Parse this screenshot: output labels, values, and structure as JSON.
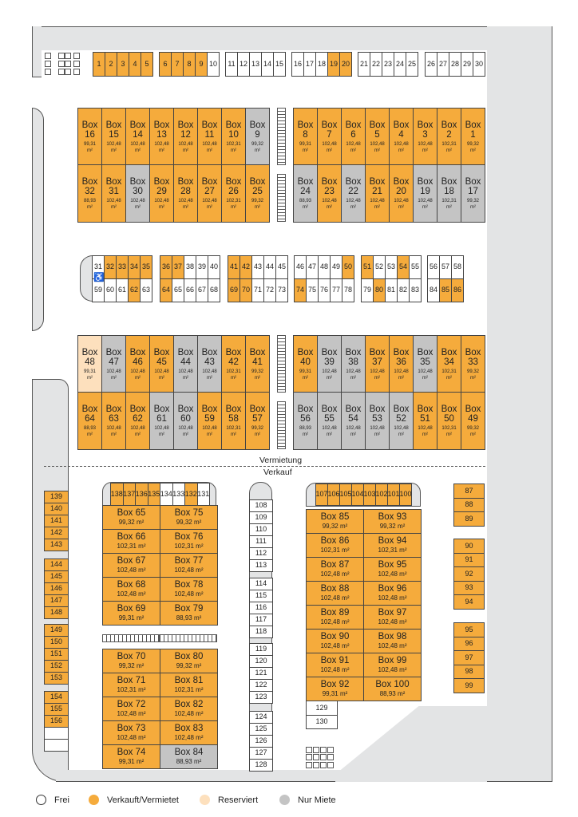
{
  "colors": {
    "sold": "#f5ab3c",
    "free": "#ffffff",
    "reserved": "#fde0bd",
    "rent": "#c4c4c4"
  },
  "labels": {
    "rental": "Vermietung",
    "sale": "Verkauf",
    "unit": "m²"
  },
  "legend": [
    {
      "label": "Frei",
      "status": "F"
    },
    {
      "label": "Verkauft/Vermietet",
      "status": "S"
    },
    {
      "label": "Reserviert",
      "status": "R"
    },
    {
      "label": "Nur Miete",
      "status": "M"
    }
  ],
  "groups": {
    "top_parking": [
      [
        "1",
        "S"
      ],
      [
        "2",
        "S"
      ],
      [
        "3",
        "S"
      ],
      [
        "4",
        "S"
      ],
      [
        "5",
        "S"
      ],
      [
        "6",
        "S"
      ],
      [
        "7",
        "S"
      ],
      [
        "8",
        "S"
      ],
      [
        "9",
        "S"
      ],
      [
        "10",
        "F"
      ],
      [
        "11",
        "F"
      ],
      [
        "12",
        "F"
      ],
      [
        "13",
        "F"
      ],
      [
        "14",
        "F"
      ],
      [
        "15",
        "F"
      ],
      [
        "16",
        "F"
      ],
      [
        "17",
        "F"
      ],
      [
        "18",
        "F"
      ],
      [
        "19",
        "S"
      ],
      [
        "20",
        "S"
      ],
      [
        "21",
        "F"
      ],
      [
        "22",
        "F"
      ],
      [
        "23",
        "F"
      ],
      [
        "24",
        "F"
      ],
      [
        "25",
        "F"
      ],
      [
        "26",
        "F"
      ],
      [
        "27",
        "F"
      ],
      [
        "28",
        "F"
      ],
      [
        "29",
        "F"
      ],
      [
        "30",
        "F"
      ]
    ],
    "upper_left_1": [
      [
        "16",
        "99,31",
        "S"
      ],
      [
        "15",
        "102,48",
        "S"
      ],
      [
        "14",
        "102,48",
        "S"
      ],
      [
        "13",
        "102,48",
        "S"
      ],
      [
        "12",
        "102,48",
        "S"
      ],
      [
        "11",
        "102,48",
        "S"
      ],
      [
        "10",
        "102,31",
        "S"
      ],
      [
        "9",
        "99,32",
        "M"
      ]
    ],
    "upper_right_1": [
      [
        "8",
        "99,31",
        "S"
      ],
      [
        "7",
        "102,48",
        "S"
      ],
      [
        "6",
        "102,48",
        "S"
      ],
      [
        "5",
        "102,48",
        "S"
      ],
      [
        "4",
        "102,48",
        "S"
      ],
      [
        "3",
        "102,48",
        "S"
      ],
      [
        "2",
        "102,31",
        "S"
      ],
      [
        "1",
        "99,32",
        "S"
      ]
    ],
    "upper_left_2": [
      [
        "32",
        "88,93",
        "S"
      ],
      [
        "31",
        "102,48",
        "S"
      ],
      [
        "30",
        "102,48",
        "M"
      ],
      [
        "29",
        "102,48",
        "S"
      ],
      [
        "28",
        "102,48",
        "S"
      ],
      [
        "27",
        "102,48",
        "S"
      ],
      [
        "26",
        "102,31",
        "S"
      ],
      [
        "25",
        "99,32",
        "S"
      ]
    ],
    "upper_right_2": [
      [
        "24",
        "88,93",
        "M"
      ],
      [
        "23",
        "102,48",
        "S"
      ],
      [
        "22",
        "102,48",
        "M"
      ],
      [
        "21",
        "102,48",
        "S"
      ],
      [
        "20",
        "102,48",
        "S"
      ],
      [
        "19",
        "102,48",
        "M"
      ],
      [
        "18",
        "102,31",
        "M"
      ],
      [
        "17",
        "99,32",
        "M"
      ]
    ],
    "mid_top": [
      [
        "31",
        "F"
      ],
      [
        "32",
        "S"
      ],
      [
        "33",
        "S"
      ],
      [
        "34",
        "S"
      ],
      [
        "35",
        "S"
      ],
      [
        "36",
        "S"
      ],
      [
        "37",
        "S"
      ],
      [
        "38",
        "F"
      ],
      [
        "39",
        "F"
      ],
      [
        "40",
        "F"
      ],
      [
        "41",
        "S"
      ],
      [
        "42",
        "S"
      ],
      [
        "43",
        "F"
      ],
      [
        "44",
        "F"
      ],
      [
        "45",
        "F"
      ],
      [
        "46",
        "F"
      ],
      [
        "47",
        "F"
      ],
      [
        "48",
        "F"
      ],
      [
        "49",
        "F"
      ],
      [
        "50",
        "S"
      ],
      [
        "51",
        "S"
      ],
      [
        "52",
        "F"
      ],
      [
        "53",
        "F"
      ],
      [
        "54",
        "S"
      ],
      [
        "55",
        "F"
      ],
      [
        "56",
        "F"
      ],
      [
        "57",
        "F"
      ],
      [
        "58",
        "F"
      ]
    ],
    "mid_bottom": [
      [
        "59",
        "F"
      ],
      [
        "60",
        "F"
      ],
      [
        "61",
        "F"
      ],
      [
        "62",
        "S"
      ],
      [
        "63",
        "F"
      ],
      [
        "64",
        "S"
      ],
      [
        "65",
        "F"
      ],
      [
        "66",
        "F"
      ],
      [
        "67",
        "F"
      ],
      [
        "68",
        "F"
      ],
      [
        "69",
        "S"
      ],
      [
        "70",
        "S"
      ],
      [
        "71",
        "F"
      ],
      [
        "72",
        "F"
      ],
      [
        "73",
        "F"
      ],
      [
        "74",
        "S"
      ],
      [
        "75",
        "F"
      ],
      [
        "76",
        "F"
      ],
      [
        "77",
        "F"
      ],
      [
        "78",
        "F"
      ],
      [
        "79",
        "F"
      ],
      [
        "80",
        "S"
      ],
      [
        "81",
        "F"
      ],
      [
        "82",
        "F"
      ],
      [
        "83",
        "F"
      ],
      [
        "84",
        "F"
      ],
      [
        "85",
        "S"
      ],
      [
        "86",
        "S"
      ]
    ],
    "lower_left_1": [
      [
        "48",
        "99,31",
        "R"
      ],
      [
        "47",
        "102,48",
        "M"
      ],
      [
        "46",
        "102,48",
        "S"
      ],
      [
        "45",
        "102,48",
        "S"
      ],
      [
        "44",
        "102,48",
        "M"
      ],
      [
        "43",
        "102,48",
        "M"
      ],
      [
        "42",
        "102,31",
        "S"
      ],
      [
        "41",
        "99,32",
        "S"
      ]
    ],
    "lower_right_1": [
      [
        "40",
        "99,31",
        "S"
      ],
      [
        "39",
        "102,48",
        "M"
      ],
      [
        "38",
        "102,48",
        "M"
      ],
      [
        "37",
        "102,48",
        "S"
      ],
      [
        "36",
        "102,48",
        "S"
      ],
      [
        "35",
        "102,48",
        "M"
      ],
      [
        "34",
        "102,31",
        "S"
      ],
      [
        "33",
        "99,32",
        "S"
      ]
    ],
    "lower_left_2": [
      [
        "64",
        "88,93",
        "S"
      ],
      [
        "63",
        "102,48",
        "S"
      ],
      [
        "62",
        "102,48",
        "S"
      ],
      [
        "61",
        "102,48",
        "M"
      ],
      [
        "60",
        "102,48",
        "M"
      ],
      [
        "59",
        "102,48",
        "S"
      ],
      [
        "58",
        "102,31",
        "S"
      ],
      [
        "57",
        "99,32",
        "S"
      ]
    ],
    "lower_right_2": [
      [
        "56",
        "88,93",
        "M"
      ],
      [
        "55",
        "102,48",
        "M"
      ],
      [
        "54",
        "102,48",
        "M"
      ],
      [
        "53",
        "102,48",
        "M"
      ],
      [
        "52",
        "102,48",
        "M"
      ],
      [
        "51",
        "102,48",
        "S"
      ],
      [
        "50",
        "102,31",
        "S"
      ],
      [
        "49",
        "99,32",
        "S"
      ]
    ],
    "sale_left_col": [
      [
        "139",
        "S"
      ],
      [
        "140",
        "S"
      ],
      [
        "141",
        "S"
      ],
      [
        "142",
        "S"
      ],
      [
        "143",
        "S"
      ],
      [
        "144",
        "S"
      ],
      [
        "145",
        "S"
      ],
      [
        "146",
        "S"
      ],
      [
        "147",
        "S"
      ],
      [
        "148",
        "S"
      ],
      [
        "149",
        "S"
      ],
      [
        "150",
        "S"
      ],
      [
        "151",
        "S"
      ],
      [
        "152",
        "S"
      ],
      [
        "153",
        "S"
      ],
      [
        "154",
        "S"
      ],
      [
        "155",
        "S"
      ],
      [
        "156",
        "S"
      ],
      [
        "",
        "F"
      ],
      [
        "",
        "F"
      ]
    ],
    "sale_a_top": [
      [
        "138",
        "S"
      ],
      [
        "137",
        "S"
      ],
      [
        "136",
        "S"
      ],
      [
        "135",
        "S"
      ],
      [
        "134",
        "F"
      ],
      [
        "133",
        "F"
      ],
      [
        "132",
        "S"
      ],
      [
        "131",
        "F"
      ]
    ],
    "sale_a_boxes": [
      [
        "Box 65",
        "99,32",
        "S"
      ],
      [
        "Box 75",
        "99,32",
        "S"
      ],
      [
        "Box 66",
        "102,31",
        "S"
      ],
      [
        "Box 76",
        "102,31",
        "S"
      ],
      [
        "Box 67",
        "102,48",
        "S"
      ],
      [
        "Box 77",
        "102,48",
        "S"
      ],
      [
        "Box 68",
        "102,48",
        "S"
      ],
      [
        "Box 78",
        "102,48",
        "S"
      ],
      [
        "Box 69",
        "99,31",
        "S"
      ],
      [
        "Box 79",
        "88,93",
        "S"
      ],
      [
        "Box 70",
        "99,32",
        "S"
      ],
      [
        "Box 80",
        "99,32",
        "S"
      ],
      [
        "Box 71",
        "102,31",
        "S"
      ],
      [
        "Box 81",
        "102,31",
        "S"
      ],
      [
        "Box 72",
        "102,48",
        "S"
      ],
      [
        "Box 82",
        "102,48",
        "S"
      ],
      [
        "Box 73",
        "102,48",
        "S"
      ],
      [
        "Box 83",
        "102,48",
        "S"
      ],
      [
        "Box 74",
        "99,31",
        "S"
      ],
      [
        "Box 84",
        "88,93",
        "M"
      ]
    ],
    "sale_mid_col": [
      [
        "108",
        "F"
      ],
      [
        "109",
        "F"
      ],
      [
        "110",
        "F"
      ],
      [
        "111",
        "F"
      ],
      [
        "112",
        "F"
      ],
      [
        "113",
        "F"
      ],
      [
        "114",
        "F"
      ],
      [
        "115",
        "F"
      ],
      [
        "116",
        "F"
      ],
      [
        "117",
        "F"
      ],
      [
        "118",
        "F"
      ],
      [
        "119",
        "F"
      ],
      [
        "120",
        "F"
      ],
      [
        "121",
        "F"
      ],
      [
        "122",
        "F"
      ],
      [
        "123",
        "F"
      ],
      [
        "124",
        "F"
      ],
      [
        "125",
        "F"
      ],
      [
        "126",
        "F"
      ],
      [
        "127",
        "F"
      ],
      [
        "128",
        "F"
      ]
    ],
    "sale_b_top": [
      [
        "107",
        "S"
      ],
      [
        "106",
        "S"
      ],
      [
        "105",
        "S"
      ],
      [
        "104",
        "S"
      ],
      [
        "103",
        "S"
      ],
      [
        "102",
        "S"
      ],
      [
        "101",
        "S"
      ],
      [
        "100",
        "S"
      ]
    ],
    "sale_b_boxes": [
      [
        "Box 85",
        "99,32",
        "S"
      ],
      [
        "Box 93",
        "99,32",
        "S"
      ],
      [
        "Box 86",
        "102,31",
        "S"
      ],
      [
        "Box 94",
        "102,31",
        "S"
      ],
      [
        "Box 87",
        "102,48",
        "S"
      ],
      [
        "Box 95",
        "102,48",
        "S"
      ],
      [
        "Box 88",
        "102,48",
        "S"
      ],
      [
        "Box 96",
        "102,48",
        "S"
      ],
      [
        "Box 89",
        "102,48",
        "S"
      ],
      [
        "Box 97",
        "102,48",
        "S"
      ],
      [
        "Box 90",
        "102,48",
        "S"
      ],
      [
        "Box 98",
        "102,48",
        "S"
      ],
      [
        "Box 91",
        "102,48",
        "S"
      ],
      [
        "Box 99",
        "102,48",
        "S"
      ],
      [
        "Box 92",
        "99,31",
        "S"
      ],
      [
        "Box 100",
        "88,93",
        "S"
      ]
    ],
    "sale_b_extra": [
      [
        "129",
        "F"
      ],
      [
        "130",
        "F"
      ]
    ],
    "sale_right_col": [
      [
        "87",
        "S"
      ],
      [
        "88",
        "S"
      ],
      [
        "89",
        "S"
      ],
      [
        "90",
        "S"
      ],
      [
        "91",
        "S"
      ],
      [
        "92",
        "S"
      ],
      [
        "93",
        "S"
      ],
      [
        "94",
        "S"
      ],
      [
        "95",
        "S"
      ],
      [
        "96",
        "S"
      ],
      [
        "97",
        "S"
      ],
      [
        "98",
        "S"
      ],
      [
        "99",
        "S"
      ]
    ]
  }
}
